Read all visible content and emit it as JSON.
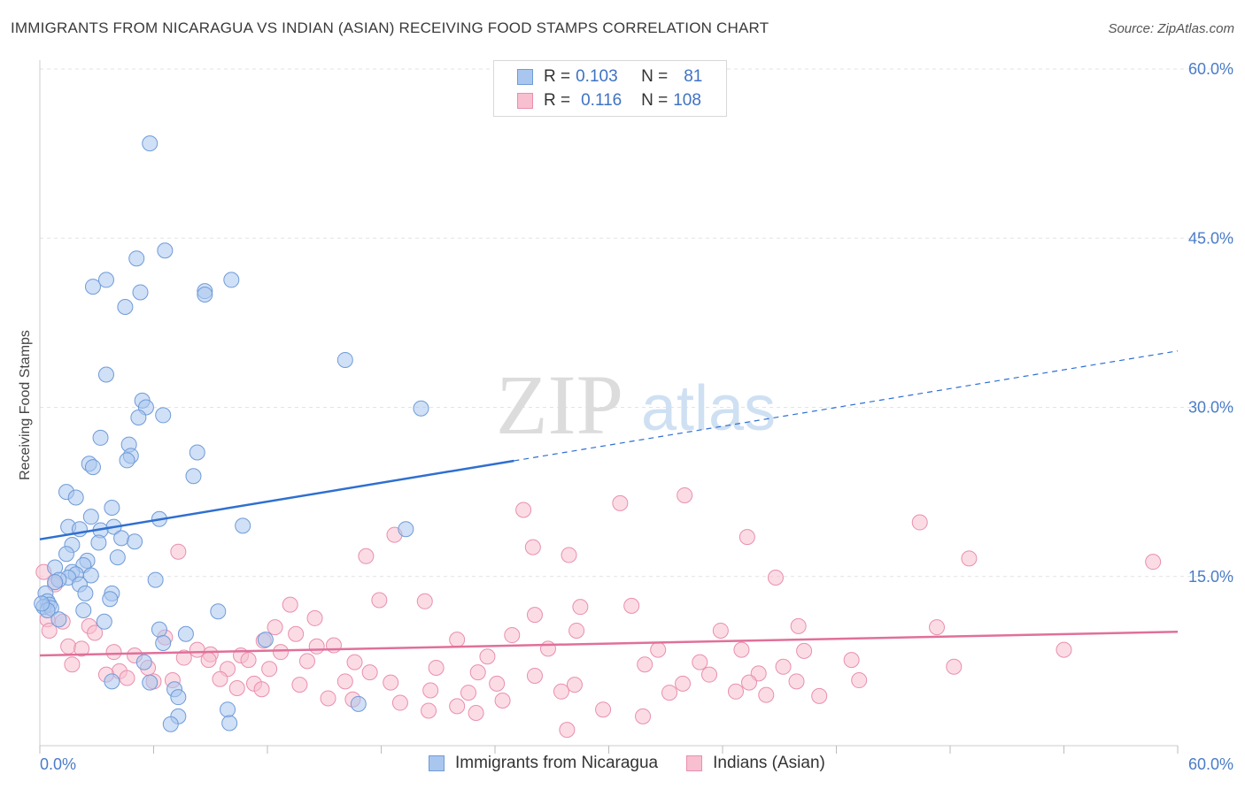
{
  "header": {
    "title": "IMMIGRANTS FROM NICARAGUA VS INDIAN (ASIAN) RECEIVING FOOD STAMPS CORRELATION CHART",
    "source": "Source: ZipAtlas.com"
  },
  "watermark": {
    "zip": "ZIP",
    "atlas": "atlas"
  },
  "legend": {
    "rows": [
      {
        "r_label": "R = ",
        "r_value": "0.103",
        "n_label": "N = ",
        "n_value": "81",
        "color": "#a9c6ee",
        "border": "#6f9bd8"
      },
      {
        "r_label": "R = ",
        "r_value": "0.116",
        "n_label": "N = ",
        "n_value": "108",
        "color": "#f7bfd0",
        "border": "#e98fae"
      }
    ]
  },
  "colors": {
    "blue_fill": "#a9c6ee",
    "blue_stroke": "#6f9bd8",
    "blue_line": "#2f6fd0",
    "pink_fill": "#f7bfd0",
    "pink_stroke": "#e98fae",
    "pink_line": "#e0709a",
    "grid": "#e3e3e3",
    "tick_text": "#4a7cc8"
  },
  "chart_data": {
    "type": "scatter",
    "title": "IMMIGRANTS FROM NICARAGUA VS INDIAN (ASIAN) RECEIVING FOOD STAMPS CORRELATION CHART",
    "xlabel": "",
    "ylabel": "Receiving Food Stamps",
    "xlim": [
      0,
      60
    ],
    "ylim": [
      0,
      60
    ],
    "x_tick_labels": [
      "0.0%",
      "60.0%"
    ],
    "y_tick_labels": [
      "15.0%",
      "30.0%",
      "45.0%",
      "60.0%"
    ],
    "y_ticks": [
      15,
      30,
      45,
      60
    ],
    "grid": true,
    "legend_position": "top-center",
    "series": [
      {
        "name": "Immigrants from Nicaragua",
        "color": "#a9c6ee",
        "trend": {
          "x0": 0,
          "y0": 18.3,
          "x1": 60,
          "y1": 35.0,
          "solid_until": 25
        },
        "points": [
          [
            5.8,
            53.4
          ],
          [
            6.6,
            43.9
          ],
          [
            5.1,
            43.2
          ],
          [
            3.5,
            41.3
          ],
          [
            2.8,
            40.7
          ],
          [
            10.1,
            41.3
          ],
          [
            5.3,
            40.2
          ],
          [
            8.7,
            40.3
          ],
          [
            8.7,
            40.0
          ],
          [
            4.5,
            38.9
          ],
          [
            16.1,
            34.2
          ],
          [
            3.5,
            32.9
          ],
          [
            5.4,
            30.6
          ],
          [
            5.6,
            30.0
          ],
          [
            6.5,
            29.3
          ],
          [
            5.2,
            29.1
          ],
          [
            20.1,
            29.9
          ],
          [
            3.2,
            27.3
          ],
          [
            4.7,
            26.7
          ],
          [
            4.8,
            25.7
          ],
          [
            4.6,
            25.3
          ],
          [
            2.6,
            25.0
          ],
          [
            2.8,
            24.7
          ],
          [
            8.3,
            26.0
          ],
          [
            8.1,
            23.9
          ],
          [
            1.4,
            22.5
          ],
          [
            1.9,
            22.0
          ],
          [
            3.8,
            21.1
          ],
          [
            2.7,
            20.3
          ],
          [
            6.3,
            20.1
          ],
          [
            1.5,
            19.4
          ],
          [
            2.1,
            19.2
          ],
          [
            3.9,
            19.4
          ],
          [
            3.2,
            19.1
          ],
          [
            10.7,
            19.5
          ],
          [
            19.3,
            19.2
          ],
          [
            4.3,
            18.4
          ],
          [
            5.0,
            18.1
          ],
          [
            3.1,
            18.0
          ],
          [
            1.7,
            17.8
          ],
          [
            1.4,
            17.0
          ],
          [
            4.1,
            16.7
          ],
          [
            2.5,
            16.4
          ],
          [
            2.3,
            16.0
          ],
          [
            0.8,
            15.8
          ],
          [
            1.7,
            15.4
          ],
          [
            2.7,
            15.1
          ],
          [
            1.9,
            15.2
          ],
          [
            1.5,
            14.9
          ],
          [
            6.1,
            14.7
          ],
          [
            1.0,
            14.7
          ],
          [
            0.8,
            14.5
          ],
          [
            2.1,
            14.3
          ],
          [
            2.4,
            13.5
          ],
          [
            3.8,
            13.5
          ],
          [
            3.7,
            13.0
          ],
          [
            0.3,
            13.5
          ],
          [
            0.4,
            12.8
          ],
          [
            0.5,
            12.5
          ],
          [
            0.2,
            12.3
          ],
          [
            0.6,
            12.2
          ],
          [
            0.4,
            12.0
          ],
          [
            2.3,
            12.0
          ],
          [
            9.4,
            11.9
          ],
          [
            3.4,
            11.0
          ],
          [
            1.0,
            11.2
          ],
          [
            6.3,
            10.3
          ],
          [
            7.7,
            9.9
          ],
          [
            11.9,
            9.4
          ],
          [
            6.5,
            9.1
          ],
          [
            5.5,
            7.4
          ],
          [
            5.8,
            5.6
          ],
          [
            7.1,
            5.0
          ],
          [
            7.3,
            4.3
          ],
          [
            16.8,
            3.7
          ],
          [
            9.9,
            3.2
          ],
          [
            7.3,
            2.6
          ],
          [
            6.9,
            1.9
          ],
          [
            10.0,
            2.0
          ],
          [
            3.8,
            5.7
          ],
          [
            0.1,
            12.6
          ]
        ]
      },
      {
        "name": "Indians (Asian)",
        "color": "#f7bfd0",
        "trend": {
          "x0": 0,
          "y0": 8.0,
          "x1": 60,
          "y1": 10.1,
          "solid_until": 60
        },
        "points": [
          [
            34.0,
            22.2
          ],
          [
            30.6,
            21.5
          ],
          [
            25.5,
            20.9
          ],
          [
            46.4,
            19.8
          ],
          [
            18.7,
            18.7
          ],
          [
            37.3,
            18.5
          ],
          [
            26.0,
            17.6
          ],
          [
            7.3,
            17.2
          ],
          [
            27.9,
            16.9
          ],
          [
            17.2,
            16.8
          ],
          [
            49.0,
            16.6
          ],
          [
            58.7,
            16.3
          ],
          [
            0.2,
            15.4
          ],
          [
            0.8,
            14.3
          ],
          [
            38.8,
            14.9
          ],
          [
            17.9,
            12.9
          ],
          [
            28.5,
            12.3
          ],
          [
            31.2,
            12.4
          ],
          [
            13.2,
            12.5
          ],
          [
            20.3,
            12.8
          ],
          [
            26.1,
            11.6
          ],
          [
            0.4,
            11.2
          ],
          [
            1.2,
            11.0
          ],
          [
            14.5,
            11.3
          ],
          [
            2.6,
            10.6
          ],
          [
            12.4,
            10.5
          ],
          [
            28.3,
            10.2
          ],
          [
            35.9,
            10.2
          ],
          [
            40.0,
            10.6
          ],
          [
            47.3,
            10.5
          ],
          [
            0.5,
            10.2
          ],
          [
            2.9,
            10.0
          ],
          [
            13.5,
            9.9
          ],
          [
            24.9,
            9.8
          ],
          [
            6.6,
            9.6
          ],
          [
            22.0,
            9.4
          ],
          [
            11.8,
            9.3
          ],
          [
            14.6,
            8.8
          ],
          [
            15.5,
            8.9
          ],
          [
            1.5,
            8.8
          ],
          [
            2.2,
            8.6
          ],
          [
            8.3,
            8.5
          ],
          [
            9.0,
            8.1
          ],
          [
            12.7,
            8.3
          ],
          [
            10.6,
            8.0
          ],
          [
            26.8,
            8.6
          ],
          [
            32.6,
            8.5
          ],
          [
            37.0,
            8.5
          ],
          [
            40.3,
            8.4
          ],
          [
            54.0,
            8.5
          ],
          [
            3.9,
            8.3
          ],
          [
            5.0,
            8.0
          ],
          [
            7.6,
            7.8
          ],
          [
            8.9,
            7.6
          ],
          [
            11.0,
            7.6
          ],
          [
            14.1,
            7.5
          ],
          [
            16.6,
            7.4
          ],
          [
            23.6,
            7.9
          ],
          [
            34.8,
            7.4
          ],
          [
            31.9,
            7.2
          ],
          [
            42.8,
            7.6
          ],
          [
            48.2,
            7.0
          ],
          [
            1.7,
            7.2
          ],
          [
            4.2,
            6.6
          ],
          [
            5.7,
            6.9
          ],
          [
            9.9,
            6.8
          ],
          [
            12.1,
            6.8
          ],
          [
            17.4,
            6.5
          ],
          [
            20.9,
            6.9
          ],
          [
            23.1,
            6.5
          ],
          [
            26.1,
            6.2
          ],
          [
            35.3,
            6.3
          ],
          [
            37.9,
            6.4
          ],
          [
            39.2,
            7.0
          ],
          [
            3.5,
            6.3
          ],
          [
            4.6,
            6.0
          ],
          [
            6.0,
            5.7
          ],
          [
            7.0,
            5.8
          ],
          [
            9.5,
            5.9
          ],
          [
            11.3,
            5.5
          ],
          [
            13.7,
            5.4
          ],
          [
            16.1,
            5.7
          ],
          [
            18.5,
            5.6
          ],
          [
            24.1,
            5.5
          ],
          [
            28.2,
            5.4
          ],
          [
            33.9,
            5.5
          ],
          [
            37.4,
            5.6
          ],
          [
            39.9,
            5.7
          ],
          [
            43.2,
            5.8
          ],
          [
            10.4,
            5.1
          ],
          [
            11.7,
            5.0
          ],
          [
            15.2,
            4.2
          ],
          [
            20.6,
            4.9
          ],
          [
            22.6,
            4.7
          ],
          [
            27.5,
            4.8
          ],
          [
            33.2,
            4.7
          ],
          [
            38.3,
            4.5
          ],
          [
            41.1,
            4.4
          ],
          [
            16.5,
            4.1
          ],
          [
            19.0,
            3.8
          ],
          [
            22.0,
            3.5
          ],
          [
            24.4,
            4.0
          ],
          [
            29.7,
            3.2
          ],
          [
            36.7,
            4.8
          ],
          [
            20.5,
            3.1
          ],
          [
            23.0,
            2.9
          ],
          [
            31.8,
            2.6
          ],
          [
            27.8,
            1.4
          ]
        ]
      }
    ]
  },
  "bottom_legend": {
    "items": [
      {
        "label": "Immigrants from Nicaragua",
        "color": "#a9c6ee",
        "border": "#6f9bd8"
      },
      {
        "label": "Indians (Asian)",
        "color": "#f7bfd0",
        "border": "#e98fae"
      }
    ]
  }
}
